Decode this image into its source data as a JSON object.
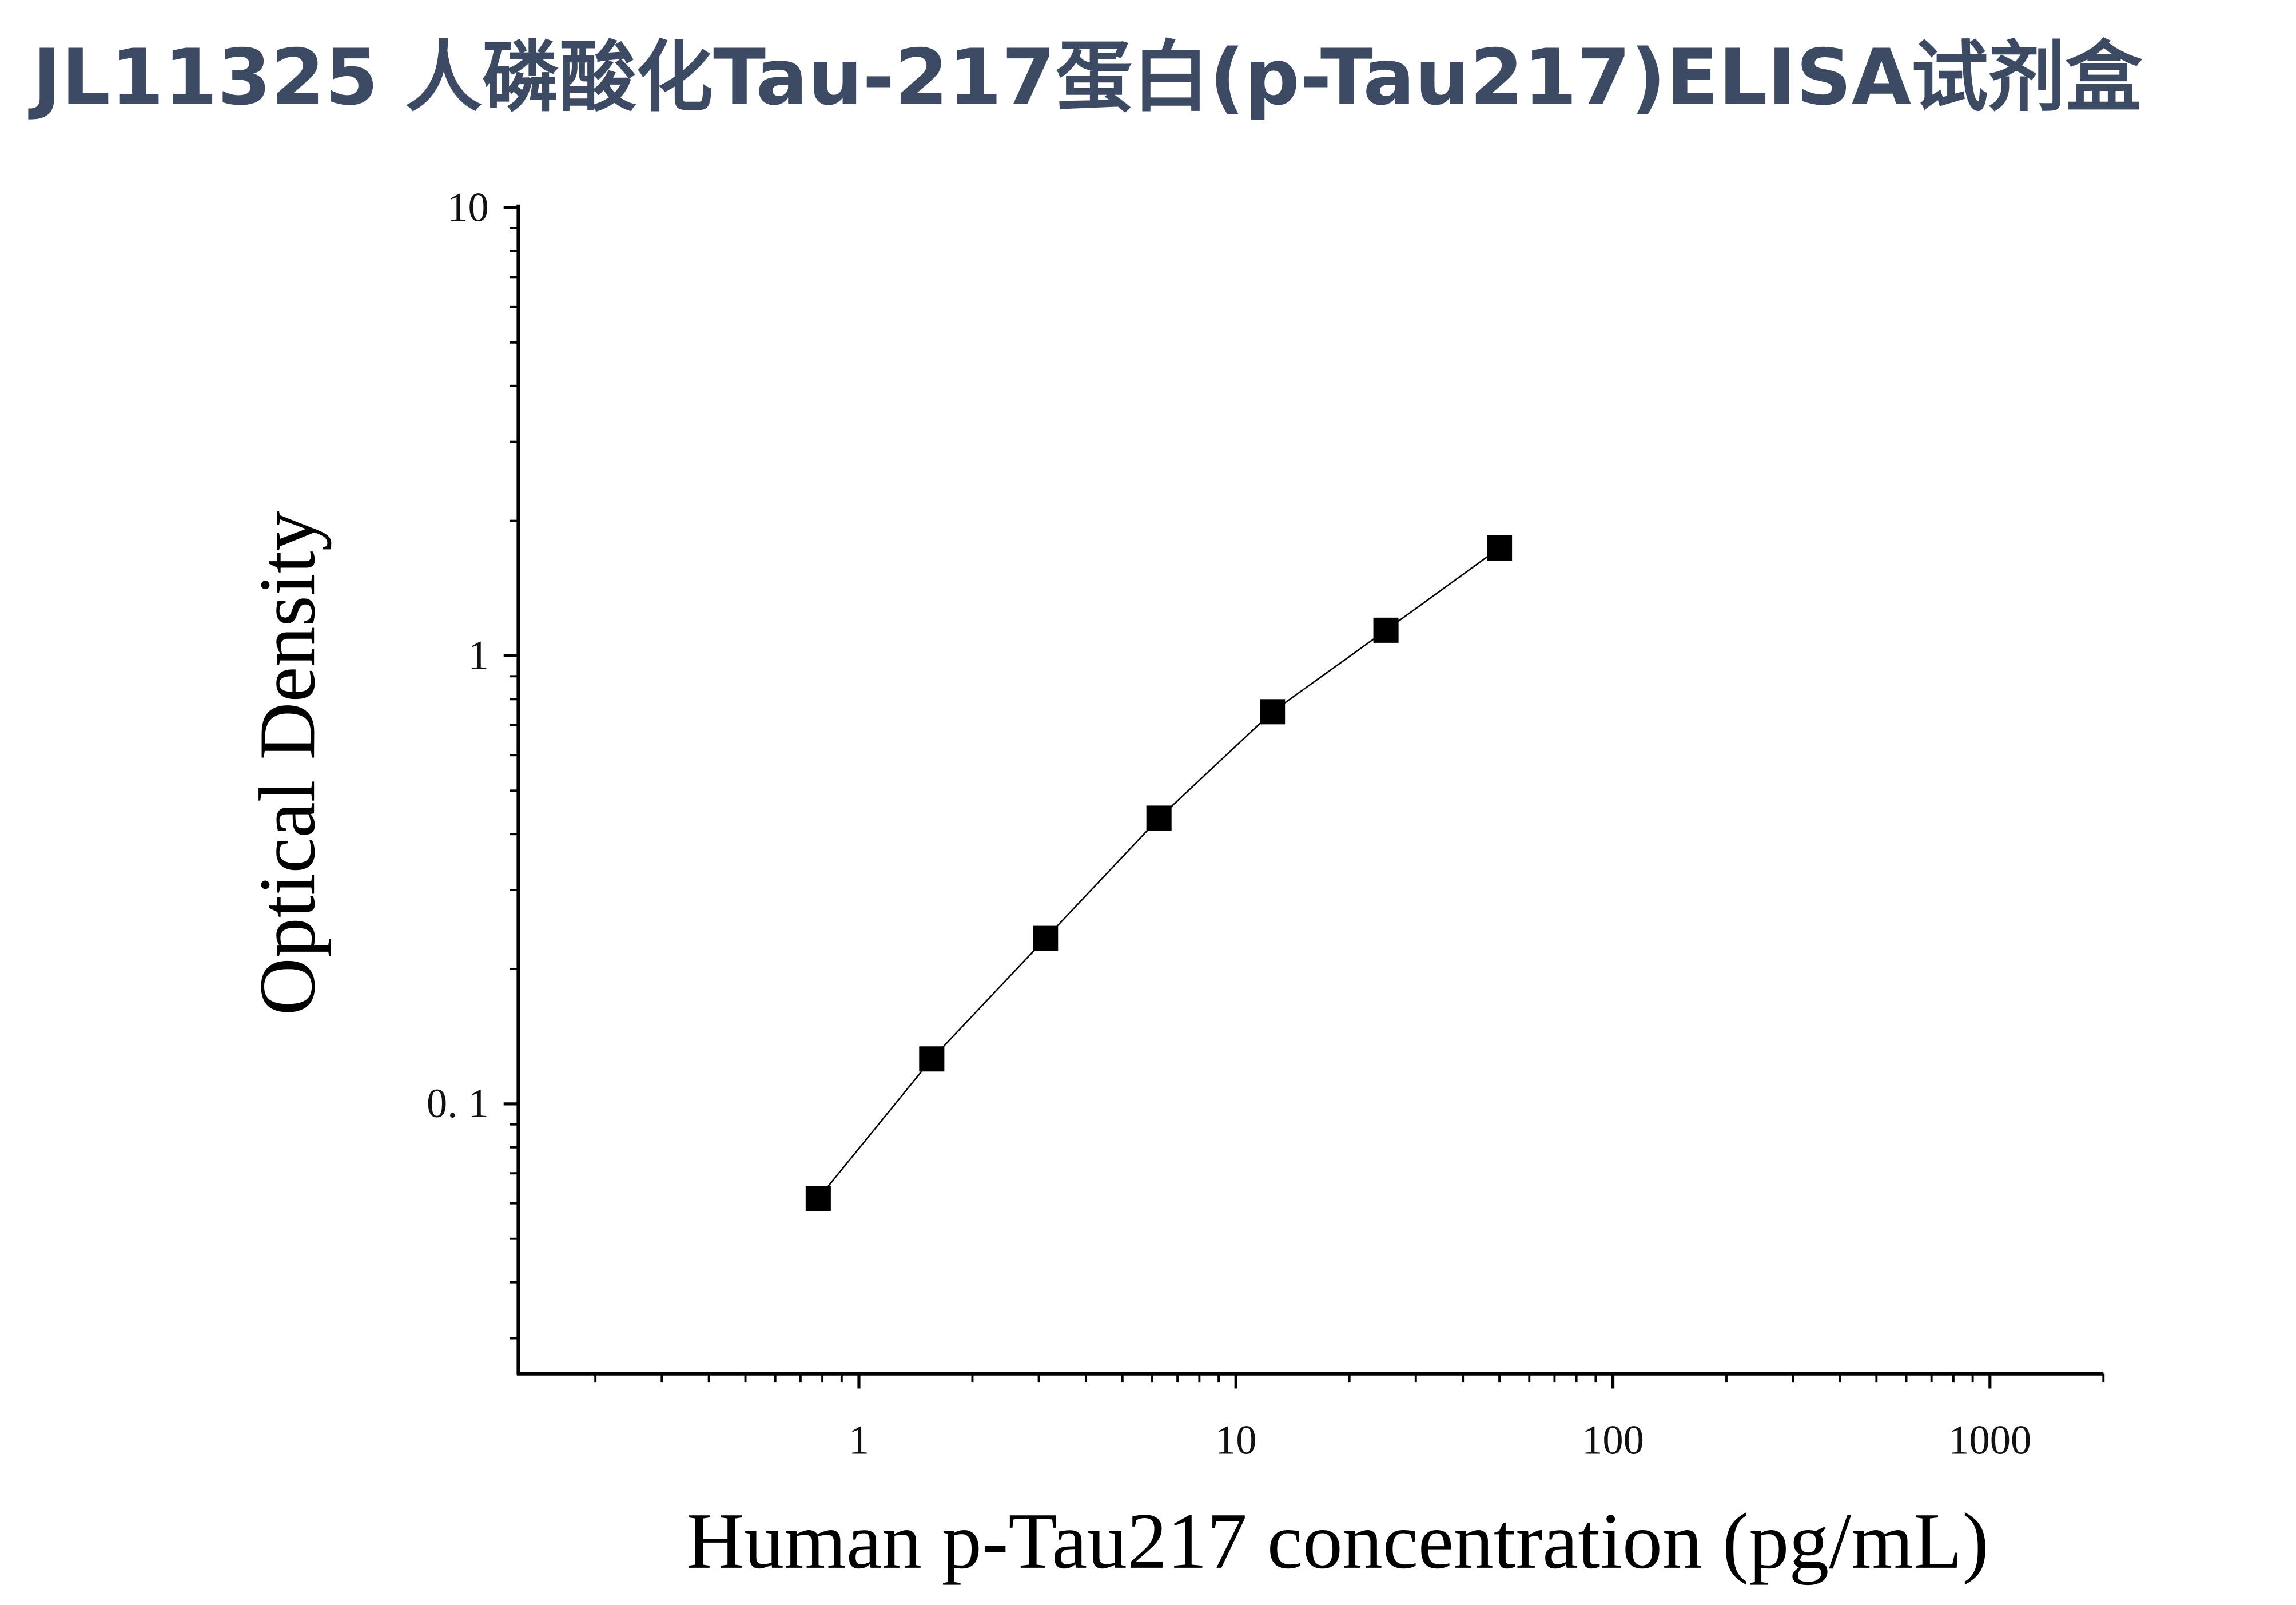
{
  "chart_data": {
    "type": "line",
    "title": "JL11325 人磷酸化Tau-217蛋白(p-Tau217)ELISA试剂盒",
    "x_label": "Human p-Tau217 concentration (pg/mL)",
    "y_label": "Optical Density",
    "x_log": true,
    "y_log": true,
    "xlim": [
      0.125,
      2000
    ],
    "ylim": [
      0.025,
      10
    ],
    "xticks": [
      1,
      10,
      100,
      1000
    ],
    "yticks": [
      {
        "value": 0.1,
        "label": "0. 1"
      },
      1,
      10
    ],
    "xticks_minor": [
      0.2,
      0.3,
      0.4,
      0.5,
      0.6,
      0.7,
      0.8,
      0.9,
      2,
      3,
      4,
      5,
      6,
      7,
      8,
      9,
      20,
      30,
      40,
      50,
      60,
      70,
      80,
      90,
      200,
      300,
      400,
      500,
      600,
      700,
      800,
      900,
      2000
    ],
    "yticks_minor": [
      0.03,
      0.04,
      0.05,
      0.06,
      0.07,
      0.08,
      0.09,
      0.2,
      0.3,
      0.4,
      0.5,
      0.6,
      0.7,
      0.8,
      0.9,
      2,
      3,
      4,
      5,
      6,
      7,
      8,
      9
    ],
    "series": [
      {
        "color": "#000000",
        "marker": "square",
        "x": [
          0.78,
          1.56,
          3.125,
          6.25,
          12.5,
          25,
          50
        ],
        "values": [
          0.0615,
          0.126,
          0.234,
          0.434,
          0.75,
          1.14,
          1.74
        ]
      }
    ]
  }
}
